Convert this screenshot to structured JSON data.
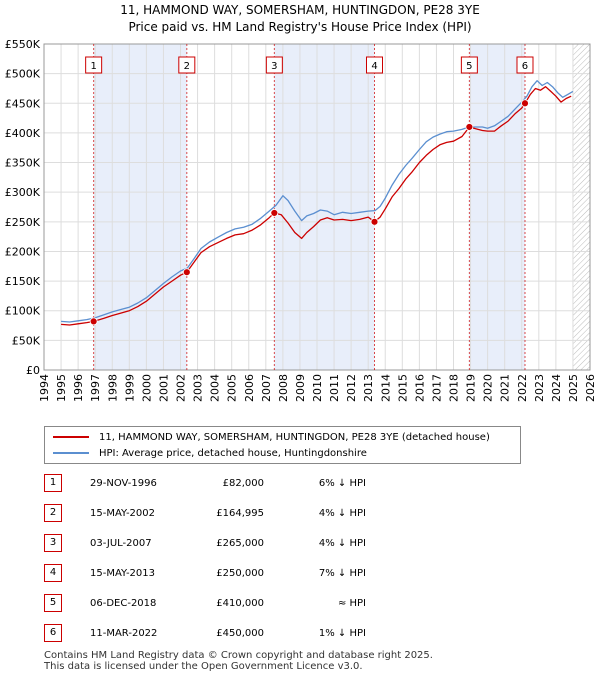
{
  "title_line1": "11, HAMMOND WAY, SOMERSHAM, HUNTINGDON, PE28 3YE",
  "title_line2": "Price paid vs. HM Land Registry's House Price Index (HPI)",
  "chart_data": {
    "type": "line",
    "title": "11, HAMMOND WAY, SOMERSHAM, HUNTINGDON, PE28 3YE — Price paid vs. HM Land Registry's House Price Index (HPI)",
    "ylim": [
      0,
      550000
    ],
    "xlim": [
      1994,
      2026
    ],
    "y_ticks": [
      {
        "value": 0,
        "label": "£0"
      },
      {
        "value": 50000,
        "label": "£50K"
      },
      {
        "value": 100000,
        "label": "£100K"
      },
      {
        "value": 150000,
        "label": "£150K"
      },
      {
        "value": 200000,
        "label": "£200K"
      },
      {
        "value": 250000,
        "label": "£250K"
      },
      {
        "value": 300000,
        "label": "£300K"
      },
      {
        "value": 350000,
        "label": "£350K"
      },
      {
        "value": 400000,
        "label": "£400K"
      },
      {
        "value": 450000,
        "label": "£450K"
      },
      {
        "value": 500000,
        "label": "£500K"
      },
      {
        "value": 550000,
        "label": "£550K"
      }
    ],
    "x_ticks": [
      "1994",
      "1995",
      "1996",
      "1997",
      "1998",
      "1999",
      "2000",
      "2001",
      "2002",
      "2003",
      "2004",
      "2005",
      "2006",
      "2007",
      "2008",
      "2009",
      "2010",
      "2011",
      "2012",
      "2013",
      "2014",
      "2015",
      "2016",
      "2017",
      "2018",
      "2019",
      "2020",
      "2021",
      "2022",
      "2023",
      "2024",
      "2025",
      "2026"
    ],
    "colors": {
      "property": "#cc0000",
      "hpi": "#5b8fd0",
      "band": "#e8eefa",
      "grid": "#dddddd",
      "marker_border": "#cc0000",
      "hatch": "#bbbbbb"
    },
    "future_from": 2025.0,
    "sales": [
      {
        "n": "1",
        "x": 1996.91,
        "date": "29-NOV-1996",
        "price": 82000,
        "price_label": "£82,000",
        "rel": "6% ↓ HPI"
      },
      {
        "n": "2",
        "x": 2002.37,
        "date": "15-MAY-2002",
        "price": 164995,
        "price_label": "£164,995",
        "rel": "4% ↓ HPI"
      },
      {
        "n": "3",
        "x": 2007.5,
        "date": "03-JUL-2007",
        "price": 265000,
        "price_label": "£265,000",
        "rel": "4% ↓ HPI"
      },
      {
        "n": "4",
        "x": 2013.37,
        "date": "15-MAY-2013",
        "price": 250000,
        "price_label": "£250,000",
        "rel": "7% ↓ HPI"
      },
      {
        "n": "5",
        "x": 2018.93,
        "date": "06-DEC-2018",
        "price": 410000,
        "price_label": "£410,000",
        "rel": "≈ HPI"
      },
      {
        "n": "6",
        "x": 2022.19,
        "date": "11-MAR-2022",
        "price": 450000,
        "price_label": "£450,000",
        "rel": "1% ↓ HPI"
      }
    ],
    "series": [
      {
        "name": "11, HAMMOND WAY, SOMERSHAM, HUNTINGDON, PE28 3YE (detached house)",
        "key": "property",
        "x": [
          1995.0,
          1995.5,
          1996.0,
          1996.5,
          1996.91,
          1997.5,
          1998.0,
          1998.5,
          1999.0,
          1999.5,
          2000.0,
          2000.5,
          2001.0,
          2001.5,
          2002.0,
          2002.37,
          2002.8,
          2003.2,
          2003.7,
          2004.2,
          2004.7,
          2005.2,
          2005.7,
          2006.2,
          2006.7,
          2007.2,
          2007.5,
          2007.9,
          2008.3,
          2008.7,
          2009.1,
          2009.4,
          2009.8,
          2010.2,
          2010.6,
          2011.0,
          2011.5,
          2012.0,
          2012.5,
          2013.0,
          2013.37,
          2013.7,
          2014.0,
          2014.4,
          2014.8,
          2015.2,
          2015.6,
          2016.0,
          2016.4,
          2016.8,
          2017.2,
          2017.6,
          2018.0,
          2018.5,
          2018.93,
          2019.3,
          2019.7,
          2020.0,
          2020.4,
          2020.8,
          2021.2,
          2021.6,
          2022.0,
          2022.19,
          2022.5,
          2022.8,
          2023.1,
          2023.4,
          2023.7,
          2024.0,
          2024.3,
          2024.6,
          2024.9
        ],
        "values": [
          77000,
          76000,
          78000,
          80000,
          82000,
          87000,
          92000,
          96000,
          100000,
          107000,
          116000,
          128000,
          140000,
          150000,
          160000,
          164995,
          182000,
          198000,
          208000,
          215000,
          222000,
          228000,
          230000,
          236000,
          245000,
          257000,
          265000,
          262000,
          248000,
          232000,
          222000,
          232000,
          242000,
          253000,
          257000,
          253000,
          254000,
          252000,
          254000,
          258000,
          250000,
          258000,
          272000,
          292000,
          306000,
          322000,
          335000,
          350000,
          362000,
          372000,
          380000,
          384000,
          386000,
          394000,
          410000,
          407000,
          404000,
          403000,
          403000,
          412000,
          420000,
          432000,
          442000,
          450000,
          465000,
          475000,
          472000,
          478000,
          470000,
          462000,
          452000,
          458000,
          462000
        ]
      },
      {
        "name": "HPI: Average price, detached house, Huntingdonshire",
        "key": "hpi",
        "x": [
          1995.0,
          1995.5,
          1996.0,
          1996.5,
          1997.0,
          1997.5,
          1998.0,
          1998.5,
          1999.0,
          1999.5,
          2000.0,
          2000.5,
          2001.0,
          2001.5,
          2002.0,
          2002.4,
          2002.8,
          2003.2,
          2003.7,
          2004.2,
          2004.7,
          2005.2,
          2005.7,
          2006.2,
          2006.7,
          2007.2,
          2007.6,
          2008.0,
          2008.3,
          2008.7,
          2009.1,
          2009.4,
          2009.8,
          2010.2,
          2010.6,
          2011.0,
          2011.5,
          2012.0,
          2012.5,
          2013.0,
          2013.4,
          2013.7,
          2014.0,
          2014.4,
          2014.8,
          2015.2,
          2015.6,
          2016.0,
          2016.4,
          2016.8,
          2017.2,
          2017.6,
          2018.0,
          2018.5,
          2018.9,
          2019.3,
          2019.7,
          2020.0,
          2020.4,
          2020.8,
          2021.2,
          2021.6,
          2022.0,
          2022.3,
          2022.6,
          2022.9,
          2023.2,
          2023.5,
          2023.8,
          2024.1,
          2024.4,
          2024.7,
          2025.0
        ],
        "values": [
          82000,
          81000,
          83000,
          85000,
          88000,
          93000,
          98000,
          102000,
          106000,
          113000,
          122000,
          134000,
          146000,
          157000,
          167000,
          172000,
          188000,
          205000,
          216000,
          224000,
          232000,
          238000,
          241000,
          246000,
          256000,
          268000,
          278000,
          294000,
          286000,
          268000,
          252000,
          260000,
          264000,
          270000,
          268000,
          262000,
          266000,
          264000,
          266000,
          268000,
          269000,
          276000,
          290000,
          312000,
          330000,
          345000,
          358000,
          372000,
          385000,
          393000,
          398000,
          402000,
          403000,
          406000,
          410000,
          410000,
          410000,
          408000,
          412000,
          420000,
          428000,
          440000,
          452000,
          462000,
          478000,
          488000,
          480000,
          485000,
          478000,
          468000,
          460000,
          465000,
          470000
        ]
      }
    ]
  },
  "legend": {
    "property_label": "11, HAMMOND WAY, SOMERSHAM, HUNTINGDON, PE28 3YE (detached house)",
    "hpi_label": "HPI: Average price, detached house, Huntingdonshire"
  },
  "footer_line1": "Contains HM Land Registry data © Crown copyright and database right 2025.",
  "footer_line2": "This data is licensed under the Open Government Licence v3.0."
}
